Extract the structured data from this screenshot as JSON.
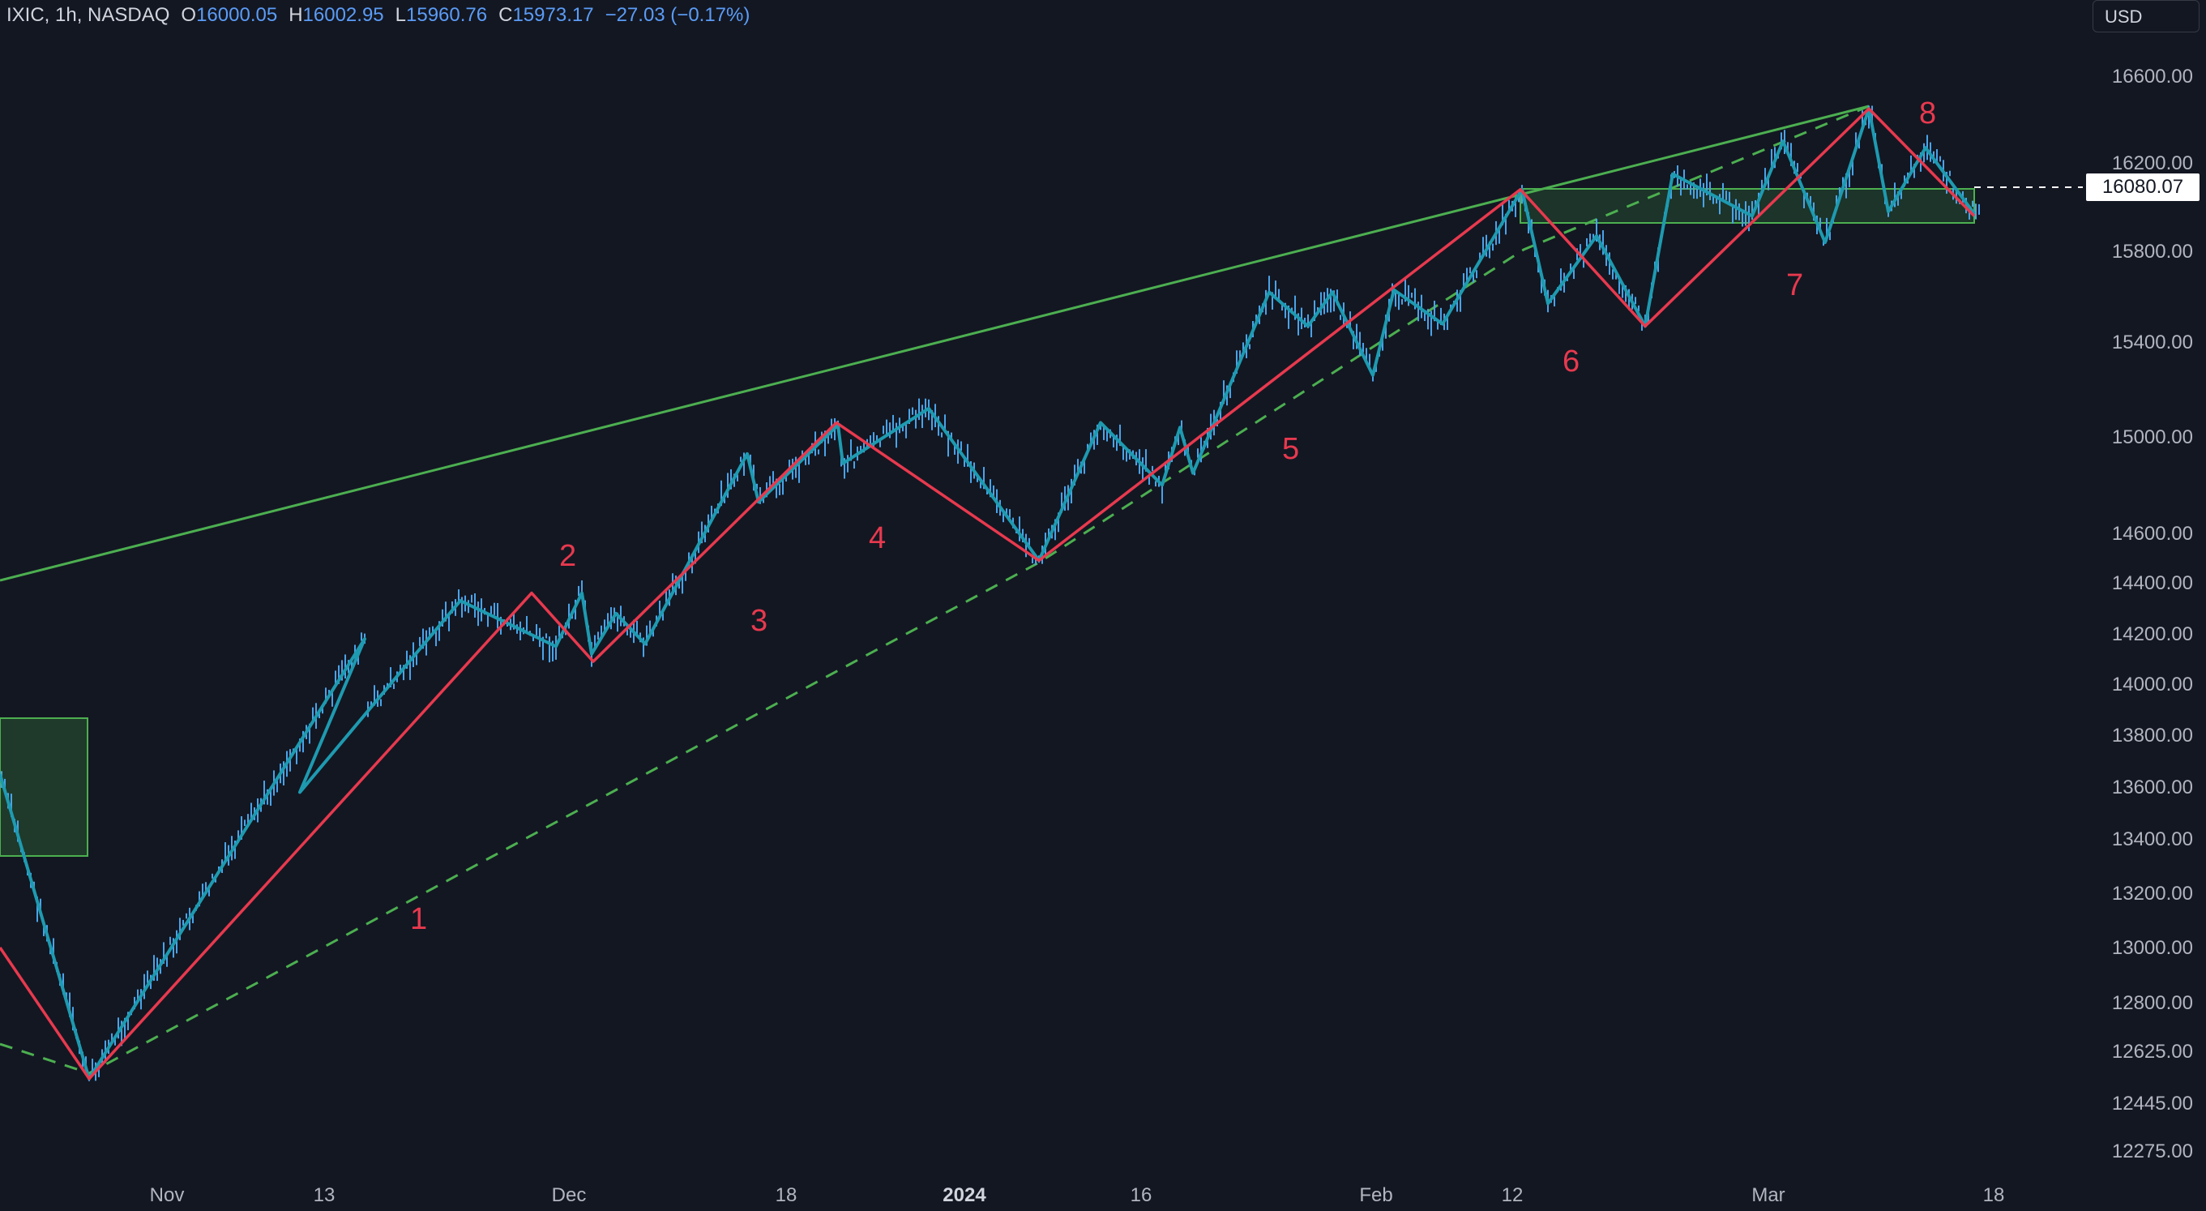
{
  "header": {
    "symbol": "IXIC, 1h, NASDAQ",
    "open_label": "O",
    "open": "16000.05",
    "high_label": "H",
    "high": "16002.95",
    "low_label": "L",
    "low": "15960.76",
    "close_label": "C",
    "close": "15973.17",
    "change": "−27.03 (−0.17%)"
  },
  "currency": "USD",
  "last_price": "16080.07",
  "price_axis": {
    "min": 12275,
    "max": 16600,
    "ticks": [
      "16600.00",
      "16200.00",
      "15800.00",
      "15400.00",
      "15000.00",
      "14600.00",
      "14400.00",
      "14200.00",
      "14000.00",
      "13800.00",
      "13600.00",
      "13400.00",
      "13200.00",
      "13000.00",
      "12800.00",
      "12625.00",
      "12445.00",
      "12275.00"
    ]
  },
  "time_axis": [
    "Nov",
    "13",
    "Dec",
    "18",
    "2024",
    "16",
    "Feb",
    "12",
    "Mar",
    "18"
  ],
  "wave_labels": [
    "1",
    "2",
    "3",
    "4",
    "5",
    "6",
    "7",
    "8"
  ],
  "colors": {
    "background": "#131722",
    "candles": "#4aa3e8",
    "zigzag_fast": "#1e9ab0",
    "zigzag_slow": "#e8394e",
    "trendline": "#4caf50",
    "zone_fill": "#1f3a2a",
    "labels": "#e8394e",
    "header_values": "#5b9cf6"
  },
  "chart_data": {
    "type": "candlestick",
    "symbol": "IXIC",
    "timeframe": "1h",
    "exchange": "NASDAQ",
    "ylim": [
      12275,
      16600
    ],
    "swing_points": [
      {
        "label": "",
        "value": 13650
      },
      {
        "label": "",
        "value": 12530
      },
      {
        "label": "",
        "value": 14180
      },
      {
        "label": "",
        "value": 13580
      },
      {
        "label": "",
        "value": 14330
      },
      {
        "label": "",
        "value": 14150
      },
      {
        "label": "",
        "value": 14360
      },
      {
        "label": "",
        "value": 14120
      },
      {
        "label": "",
        "value": 14280
      },
      {
        "label": "",
        "value": 14160
      },
      {
        "label": "",
        "value": 14930
      },
      {
        "label": "",
        "value": 14730
      },
      {
        "label": "",
        "value": 15050
      },
      {
        "label": "",
        "value": 14890
      },
      {
        "label": "",
        "value": 15120
      },
      {
        "label": "",
        "value": 14490
      },
      {
        "label": "",
        "value": 15060
      },
      {
        "label": "",
        "value": 14800
      },
      {
        "label": "",
        "value": 15040
      },
      {
        "label": "",
        "value": 14850
      },
      {
        "label": "",
        "value": 15620
      },
      {
        "label": "",
        "value": 15470
      },
      {
        "label": "",
        "value": 15620
      },
      {
        "label": "",
        "value": 15260
      },
      {
        "label": "",
        "value": 15630
      },
      {
        "label": "",
        "value": 15480
      },
      {
        "label": "",
        "value": 16080
      },
      {
        "label": "",
        "value": 15570
      },
      {
        "label": "",
        "value": 15870
      },
      {
        "label": "",
        "value": 15470
      },
      {
        "label": "",
        "value": 16150
      },
      {
        "label": "",
        "value": 15960
      },
      {
        "label": "",
        "value": 16300
      },
      {
        "label": "",
        "value": 15840
      },
      {
        "label": "",
        "value": 16450
      },
      {
        "label": "",
        "value": 15980
      },
      {
        "label": "",
        "value": 16270
      },
      {
        "label": "",
        "value": 15970
      }
    ],
    "waves": [
      {
        "label": "1",
        "value": 12530
      },
      {
        "label": "2",
        "value": 14360
      },
      {
        "label": "3",
        "value": 14090
      },
      {
        "label": "4",
        "value": 15060
      },
      {
        "label": "5",
        "value": 14490
      },
      {
        "label": "6",
        "value": 16080
      },
      {
        "label": "7",
        "value": 15470
      },
      {
        "label": "8",
        "value": 16450
      }
    ],
    "resistance_zone": [
      15940,
      16080
    ],
    "last": 16080.07
  }
}
